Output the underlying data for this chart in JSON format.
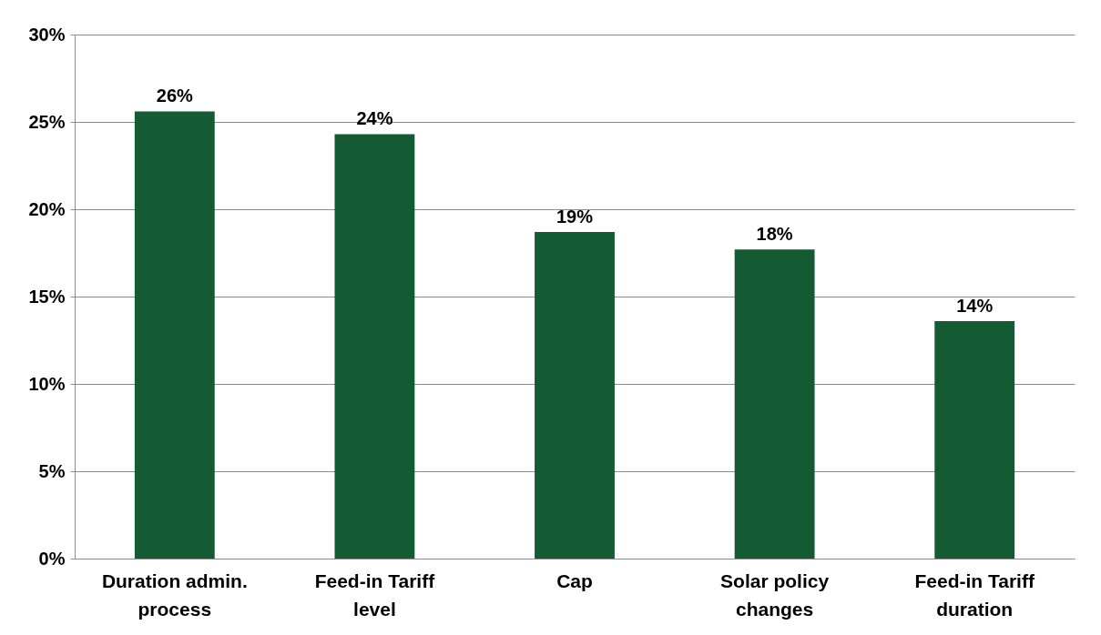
{
  "chart_data": {
    "type": "bar",
    "categories": [
      "Duration admin. process",
      "Feed-in Tariff level",
      "Cap",
      "Solar policy changes",
      "Feed-in Tariff duration"
    ],
    "values": [
      25.6,
      24.3,
      18.7,
      17.7,
      13.6
    ],
    "value_labels": [
      "26%",
      "24%",
      "19%",
      "18%",
      "14%"
    ],
    "color": "#145a32",
    "ylim": [
      0,
      30
    ],
    "yticks": [
      {
        "value": 0,
        "label": "0%"
      },
      {
        "value": 5,
        "label": "5%"
      },
      {
        "value": 10,
        "label": "10%"
      },
      {
        "value": 15,
        "label": "15%"
      },
      {
        "value": 20,
        "label": "20%"
      },
      {
        "value": 25,
        "label": "25%"
      },
      {
        "value": 30,
        "label": "30%"
      }
    ],
    "grid": "y"
  }
}
